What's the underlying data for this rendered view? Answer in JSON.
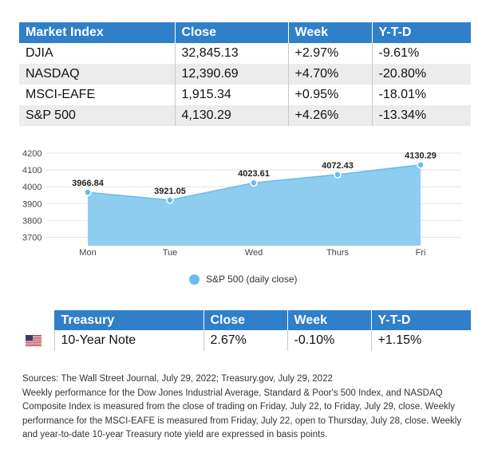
{
  "market_table": {
    "headers": [
      "Market Index",
      "Close",
      "Week",
      "Y-T-D"
    ],
    "rows": [
      [
        "DJIA",
        "32,845.13",
        "+2.97%",
        "-9.61%"
      ],
      [
        "NASDAQ",
        "12,390.69",
        "+4.70%",
        "-20.80%"
      ],
      [
        "MSCI-EAFE",
        "1,915.34",
        "+0.95%",
        "-18.01%"
      ],
      [
        "S&P 500",
        "4,130.29",
        "+4.26%",
        "-13.34%"
      ]
    ]
  },
  "chart_data": {
    "type": "area",
    "categories": [
      "Mon",
      "Tue",
      "Wed",
      "Thurs",
      "Fri"
    ],
    "series": [
      {
        "name": "S&P 500 (daily close)",
        "values": [
          3966.84,
          3921.05,
          4023.61,
          4072.43,
          4130.29
        ],
        "labels": [
          "3966.84",
          "3921.05",
          "4023.61",
          "4072.43",
          "4130.29"
        ]
      }
    ],
    "y_ticks": [
      "4200",
      "4100",
      "4000",
      "3900",
      "3800",
      "3700"
    ],
    "ylim": [
      3650,
      4200
    ],
    "grid": true,
    "legend": "bottom-center",
    "colors": {
      "fill": "#8ecdf0",
      "line": "#66bde9",
      "marker": "#66bde9"
    }
  },
  "treasury_table": {
    "headers": [
      "",
      "Treasury",
      "Close",
      "Week",
      "Y-T-D"
    ],
    "rows": [
      {
        "flag": "us-flag-icon",
        "name": "10-Year Note",
        "close": "2.67%",
        "week": "-0.10%",
        "ytd": "+1.15%"
      }
    ]
  },
  "notes": [
    "Sources: The Wall Street Journal, July 29, 2022; Treasury.gov, July 29, 2022",
    "Weekly performance for the Dow Jones Industrial Average, Standard & Poor's 500 Index, and NASDAQ Composite Index is measured from the close of trading on Friday, July 22, to Friday, July 29, close. Weekly performance for the MSCI-EAFE is measured from Friday, July 22, open to Thursday, July 28, close. Weekly and year-to-date 10-year Treasury note yield are expressed in basis points."
  ],
  "colors": {
    "header_bg": "#2f7fc9",
    "row_alt_bg": "#ececec"
  }
}
